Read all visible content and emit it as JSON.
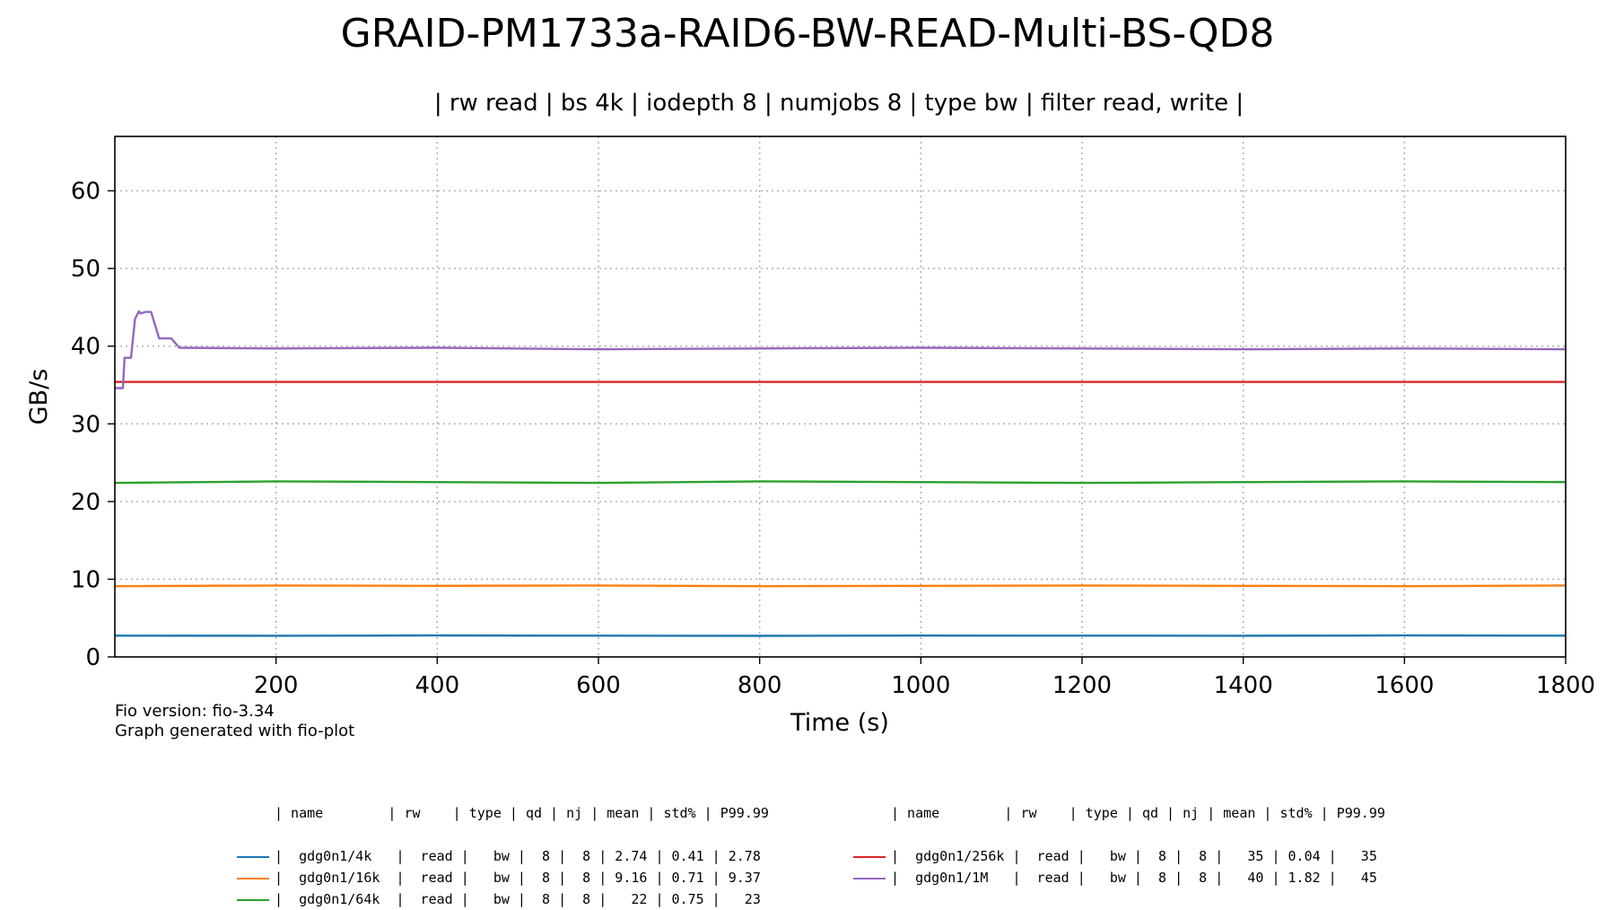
{
  "chart_data": {
    "type": "line",
    "title": "GRAID-PM1733a-RAID6-BW-READ-Multi-BS-QD8",
    "subtitle": "| rw read | bs 4k | iodepth 8 | numjobs 8 | type bw | filter read, write |",
    "xlabel": "Time (s)",
    "ylabel": "GB/s",
    "xlim": [
      0,
      1800
    ],
    "ylim": [
      0,
      67
    ],
    "xticks": [
      "200",
      "400",
      "600",
      "800",
      "1000",
      "1200",
      "1400",
      "1600",
      "1800"
    ],
    "yticks": [
      "0",
      "10",
      "20",
      "30",
      "40",
      "50",
      "60"
    ],
    "grid": true,
    "series": [
      {
        "name": "gdg0n1/4k",
        "color": "#1f77b4",
        "x": [
          0,
          200,
          400,
          600,
          800,
          1000,
          1200,
          1400,
          1600,
          1800
        ],
        "y": [
          2.74,
          2.73,
          2.76,
          2.74,
          2.72,
          2.75,
          2.74,
          2.73,
          2.76,
          2.74
        ]
      },
      {
        "name": "gdg0n1/16k",
        "color": "#ff7f0e",
        "x": [
          0,
          200,
          400,
          600,
          800,
          1000,
          1200,
          1400,
          1600,
          1800
        ],
        "y": [
          9.1,
          9.2,
          9.15,
          9.2,
          9.1,
          9.15,
          9.2,
          9.15,
          9.1,
          9.2
        ]
      },
      {
        "name": "gdg0n1/64k",
        "color": "#2ca02c",
        "x": [
          0,
          200,
          400,
          600,
          800,
          1000,
          1200,
          1400,
          1600,
          1800
        ],
        "y": [
          22.4,
          22.6,
          22.5,
          22.4,
          22.6,
          22.5,
          22.4,
          22.5,
          22.6,
          22.5
        ]
      },
      {
        "name": "gdg0n1/256k",
        "color": "#d62728",
        "x": [
          0,
          200,
          400,
          600,
          800,
          1000,
          1200,
          1400,
          1600,
          1800
        ],
        "y": [
          35.4,
          35.4,
          35.4,
          35.4,
          35.4,
          35.4,
          35.4,
          35.4,
          35.4,
          35.4
        ]
      },
      {
        "name": "gdg0n1/1M",
        "color": "#9467bd",
        "x": [
          0,
          10,
          12,
          20,
          25,
          30,
          32,
          38,
          45,
          55,
          60,
          70,
          80,
          200,
          400,
          600,
          800,
          1000,
          1200,
          1400,
          1600,
          1800
        ],
        "y": [
          34.6,
          34.6,
          38.5,
          38.5,
          43.5,
          44.5,
          44.2,
          44.4,
          44.4,
          41.0,
          41.0,
          41.0,
          39.8,
          39.7,
          39.8,
          39.6,
          39.7,
          39.8,
          39.7,
          39.6,
          39.7,
          39.6
        ]
      }
    ]
  },
  "footer": {
    "fio_version": "Fio version: fio-3.34",
    "generated": "Graph generated with fio-plot"
  },
  "legend": {
    "header": "| name        | rw    | type | qd | nj | mean | std% | P99.99",
    "left": [
      {
        "text": "|  gdg0n1/4k   |  read |   bw |  8 |  8 | 2.74 | 0.41 | 2.78",
        "color": "#1f77b4"
      },
      {
        "text": "|  gdg0n1/16k  |  read |   bw |  8 |  8 | 9.16 | 0.71 | 9.37",
        "color": "#ff7f0e"
      },
      {
        "text": "|  gdg0n1/64k  |  read |   bw |  8 |  8 |   22 | 0.75 |   23",
        "color": "#2ca02c"
      }
    ],
    "right": [
      {
        "text": "|  gdg0n1/256k |  read |   bw |  8 |  8 |   35 | 0.04 |   35",
        "color": "#d62728"
      },
      {
        "text": "|  gdg0n1/1M   |  read |   bw |  8 |  8 |   40 | 1.82 |   45",
        "color": "#9467bd"
      }
    ]
  }
}
